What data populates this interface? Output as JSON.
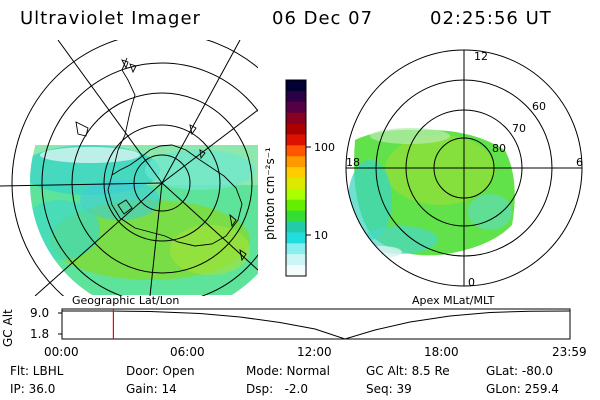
{
  "header": {
    "instrument": "Ultraviolet Imager",
    "date": "06 Dec 07",
    "time": "02:25:56 UT"
  },
  "left_panel": {
    "caption": "Geographic Lat/Lon"
  },
  "right_panel": {
    "caption": "Apex MLat/MLT",
    "mlt_labels": [
      "12",
      "18",
      "6",
      "0"
    ],
    "mlat_labels": [
      "60",
      "70",
      "80"
    ]
  },
  "colorbar": {
    "unit_label": "photon cm⁻²s⁻¹",
    "tick_labels": [
      "100",
      "10"
    ],
    "colors": [
      "#000033",
      "#2a0044",
      "#550044",
      "#880022",
      "#aa0000",
      "#dd1100",
      "#ff5500",
      "#ff9900",
      "#ffcc00",
      "#dde800",
      "#aaff00",
      "#66ee00",
      "#33dd33",
      "#22ccaa",
      "#22dddd",
      "#88eeee",
      "#ccf6f6",
      "#f4fbfb"
    ]
  },
  "altitude_plot": {
    "ylabel": "GC Alt",
    "y_ticks": [
      "9.0",
      "1.8"
    ],
    "x_ticks": [
      "00:00",
      "06:00",
      "12:00",
      "18:00",
      "23:59"
    ],
    "current_time_hours": 2.43,
    "marker_color": "#ff0000"
  },
  "status": {
    "row1": {
      "filter": "Flt: LBHL",
      "door": "Door: Open",
      "mode": "Mode: Normal",
      "gc_alt": "GC Alt: 8.5 Re",
      "glat": "GLat: -80.0"
    },
    "row2": {
      "ip": "IP: 36.0",
      "gain": "Gain: 14",
      "dsp": "Dsp:   -2.0",
      "seq": "Seq: 39",
      "glon": "GLon: 259.4"
    }
  }
}
